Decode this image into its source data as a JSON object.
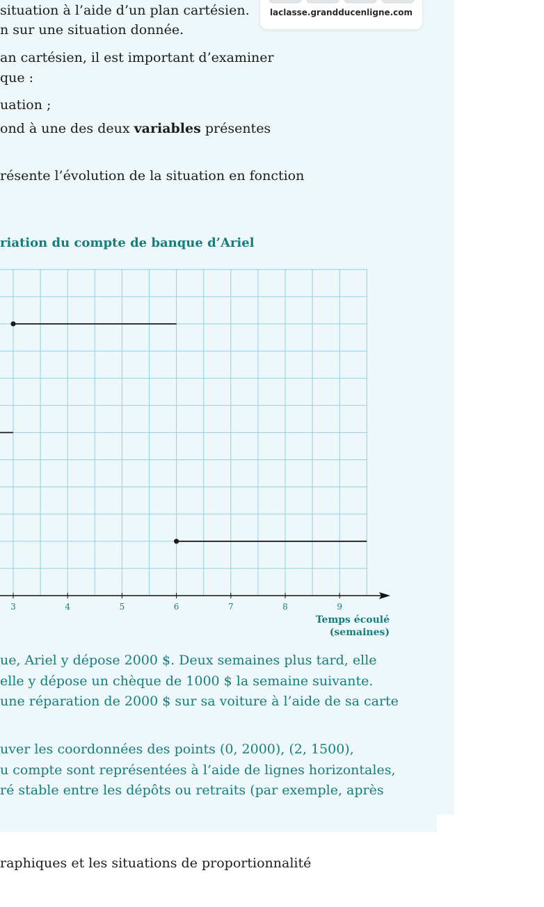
{
  "intro": {
    "line1": "situation à l’aide d’un plan cartésien.",
    "line2": "n sur une situation donnée.",
    "line3": "an cartésien, il est important d’examiner",
    "line4": "que :",
    "line5": "uation ;",
    "line6_pre": "ond à une des deux ",
    "line6_bold": "variables",
    "line6_post": " présentes",
    "line7": "résente l’évolution de la situation en fonction"
  },
  "url_card": {
    "url": "laclasse.grandducenligne.com"
  },
  "chart_title": "riation du compte de banque d’Ariel",
  "chart_data": {
    "type": "line",
    "title": "riation du compte de banque d’Ariel",
    "xlabel_line1": "Temps écoulé",
    "xlabel_line2": "(semaines)",
    "x_ticks": [
      "3",
      "4",
      "5",
      "6",
      "7",
      "8",
      "9"
    ],
    "series": [
      {
        "segments": [
          {
            "x": [
              2,
              3
            ],
            "y": [
              1500,
              1500
            ],
            "start_dot": false
          },
          {
            "x": [
              3,
              6
            ],
            "y": [
              2500,
              2500
            ],
            "start_dot": true
          },
          {
            "x": [
              6,
              9.5
            ],
            "y": [
              500,
              500
            ],
            "start_dot": true
          }
        ]
      }
    ],
    "colors": {
      "grid": "#8fd3e4",
      "line": "#1a1a1a",
      "accent": "#147d7d"
    }
  },
  "explanation": {
    "line1": "ue, Ariel y dépose 2000 $. Deux semaines plus tard, elle",
    "line2": " elle y dépose un chèque de 1000 $ la semaine suivante.",
    "line3": "une réparation de 2000 $ sur sa voiture à l’aide de sa carte",
    "line4": "uver les coordonnées des points (0, 2000), (2, 1500),",
    "line5": "u compte sont représentées à l’aide de lignes horizontales,",
    "line6": "ré stable entre les dépôts ou retraits (par exemple, après"
  },
  "footer": "raphiques et les situations de proportionnalité"
}
